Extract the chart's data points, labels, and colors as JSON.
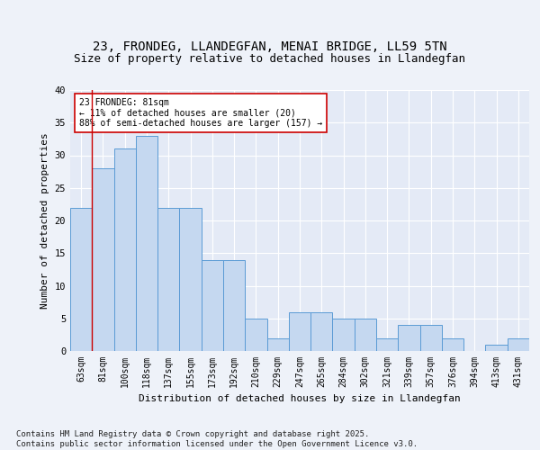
{
  "title": "23, FRONDEG, LLANDEGFAN, MENAI BRIDGE, LL59 5TN",
  "subtitle": "Size of property relative to detached houses in Llandegfan",
  "xlabel": "Distribution of detached houses by size in Llandegfan",
  "ylabel": "Number of detached properties",
  "categories": [
    "63sqm",
    "81sqm",
    "100sqm",
    "118sqm",
    "137sqm",
    "155sqm",
    "173sqm",
    "192sqm",
    "210sqm",
    "229sqm",
    "247sqm",
    "265sqm",
    "284sqm",
    "302sqm",
    "321sqm",
    "339sqm",
    "357sqm",
    "376sqm",
    "394sqm",
    "413sqm",
    "431sqm"
  ],
  "bar_values": [
    22,
    28,
    31,
    33,
    22,
    22,
    14,
    14,
    5,
    2,
    6,
    6,
    5,
    5,
    2,
    4,
    4,
    2,
    0,
    1,
    2
  ],
  "bar_color": "#c5d8f0",
  "bar_edge_color": "#5b9bd5",
  "highlight_bar_index": 1,
  "highlight_line_color": "#cc0000",
  "annotation_text": "23 FRONDEG: 81sqm\n← 11% of detached houses are smaller (20)\n88% of semi-detached houses are larger (157) →",
  "annotation_box_color": "#ffffff",
  "annotation_box_edge_color": "#cc0000",
  "ylim": [
    0,
    40
  ],
  "yticks": [
    0,
    5,
    10,
    15,
    20,
    25,
    30,
    35,
    40
  ],
  "footer": "Contains HM Land Registry data © Crown copyright and database right 2025.\nContains public sector information licensed under the Open Government Licence v3.0.",
  "background_color": "#eef2f9",
  "plot_bg_color": "#e4eaf6",
  "grid_color": "#ffffff",
  "title_fontsize": 10,
  "subtitle_fontsize": 9,
  "tick_fontsize": 7,
  "ylabel_fontsize": 8,
  "xlabel_fontsize": 8,
  "footer_fontsize": 6.5
}
